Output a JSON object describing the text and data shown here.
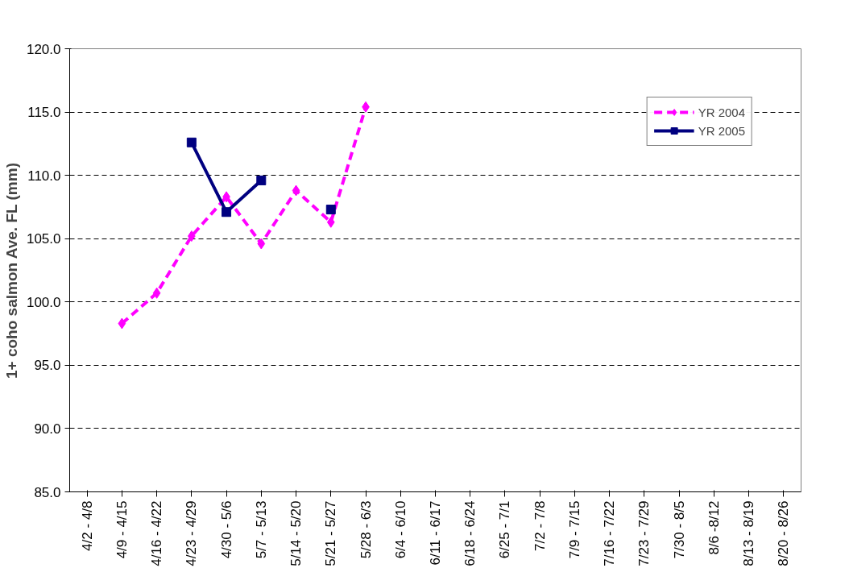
{
  "chart_data": {
    "type": "line",
    "ylabel": "1+ coho salmon Ave. FL (mm)",
    "categories": [
      "4/2 - 4/8",
      "4/9 - 4/15",
      "4/16 - 4/22",
      "4/23 - 4/29",
      "4/30 - 5/6",
      "5/7 - 5/13",
      "5/14 - 5/20",
      "5/21 - 5/27",
      "5/28 - 6/3",
      "6/4 - 6/10",
      "6/11 - 6/17",
      "6/18 - 6/24",
      "6/25 - 7/1",
      "7/2 - 7/8",
      "7/9 - 7/15",
      "7/16 - 7/22",
      "7/23 - 7/29",
      "7/30 - 8/5",
      "8/6 -8/12",
      "8/13 - 8/19",
      "8/20 - 8/26"
    ],
    "series": [
      {
        "name": "YR 2004",
        "color": "#ff00ff",
        "marker": "diamond",
        "line_style": "dashed",
        "values": [
          null,
          98.3,
          100.7,
          105.2,
          108.3,
          104.6,
          108.8,
          106.3,
          115.4,
          null,
          null,
          null,
          null,
          null,
          null,
          null,
          null,
          null,
          null,
          null,
          null
        ]
      },
      {
        "name": "YR 2005",
        "color": "#000080",
        "marker": "square",
        "line_style": "solid",
        "values": [
          null,
          null,
          null,
          112.6,
          107.1,
          109.6,
          null,
          107.3,
          null,
          null,
          null,
          null,
          null,
          null,
          null,
          null,
          null,
          null,
          null,
          null,
          null
        ]
      }
    ],
    "ylim": [
      85,
      120
    ],
    "yticks": [
      {
        "value": 85,
        "label": "85.0"
      },
      {
        "value": 90,
        "label": "90.0"
      },
      {
        "value": 95,
        "label": "95.0"
      },
      {
        "value": 100,
        "label": "100.0"
      },
      {
        "value": 105,
        "label": "105.0"
      },
      {
        "value": 110,
        "label": "110.0"
      },
      {
        "value": 115,
        "label": "115.0"
      },
      {
        "value": 120,
        "label": "120.0"
      }
    ],
    "grid": "y",
    "legend": "top right"
  }
}
